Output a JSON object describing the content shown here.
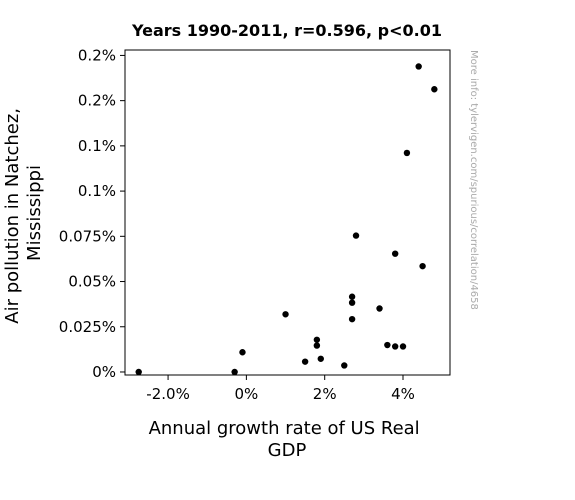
{
  "chart_data": {
    "type": "scatter",
    "title": "Years 1990-2011, r=0.596, p<0.01",
    "xlabel": [
      "Annual growth rate of US Real",
      "GDP"
    ],
    "ylabel": [
      "Air pollution in Natchez,",
      "Mississippi"
    ],
    "xlim": [
      -3.1,
      5.2
    ],
    "ylim": [
      -1.67e-05,
      0.00178
    ],
    "x_ticks": [
      {
        "value": -2,
        "label": "-2.0%"
      },
      {
        "value": 0,
        "label": "0%"
      },
      {
        "value": 2,
        "label": "2%"
      },
      {
        "value": 4,
        "label": "4%"
      }
    ],
    "y_ticks": [
      {
        "value": 0,
        "label": "0%"
      },
      {
        "value": 0.00025,
        "label": "0.025%"
      },
      {
        "value": 0.0005,
        "label": "0.05%"
      },
      {
        "value": 0.00075,
        "label": "0.075%"
      },
      {
        "value": 0.001,
        "label": "0.1%"
      },
      {
        "value": 0.00125,
        "label": "0.1%"
      },
      {
        "value": 0.0015,
        "label": "0.2%"
      },
      {
        "value": 0.00175,
        "label": "0.2%"
      }
    ],
    "grid": false,
    "points": [
      {
        "x": -2.75,
        "y": 0.0
      },
      {
        "x": -0.3,
        "y": 0.0
      },
      {
        "x": -0.1,
        "y": 0.000109
      },
      {
        "x": 1.0,
        "y": 0.000319
      },
      {
        "x": 1.5,
        "y": 5.7e-05
      },
      {
        "x": 1.8,
        "y": 0.000178
      },
      {
        "x": 1.8,
        "y": 0.000146
      },
      {
        "x": 1.9,
        "y": 7.3e-05
      },
      {
        "x": 2.5,
        "y": 3.6e-05
      },
      {
        "x": 2.7,
        "y": 0.000416
      },
      {
        "x": 2.7,
        "y": 0.000383
      },
      {
        "x": 2.7,
        "y": 0.000292
      },
      {
        "x": 2.8,
        "y": 0.000754
      },
      {
        "x": 3.4,
        "y": 0.000351
      },
      {
        "x": 3.6,
        "y": 0.000149
      },
      {
        "x": 3.8,
        "y": 0.000141
      },
      {
        "x": 4.0,
        "y": 0.000141
      },
      {
        "x": 3.8,
        "y": 0.000654
      },
      {
        "x": 4.1,
        "y": 0.001211
      },
      {
        "x": 4.4,
        "y": 0.001689
      },
      {
        "x": 4.5,
        "y": 0.000585
      },
      {
        "x": 4.8,
        "y": 0.001563
      }
    ],
    "marker_color": "#000000"
  },
  "watermark": "More info: tylervigen.com/spurious/correlation/4658"
}
